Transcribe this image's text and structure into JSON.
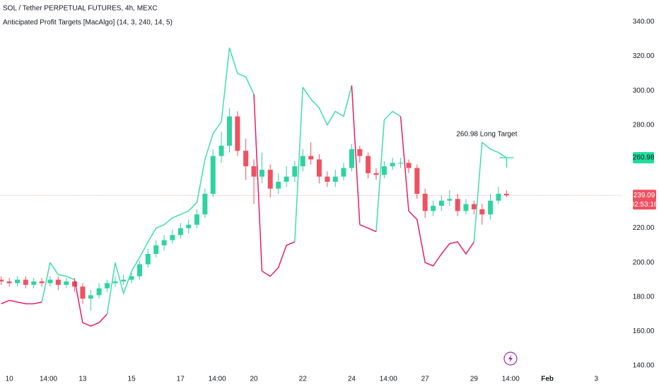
{
  "chart_data": {
    "type": "candlestick",
    "title": "SOL / Tether PERPETUAL FUTURES, 4h, MEXC",
    "subtitle": "Anticipated Profit Targets [MacAlgo] (14, 3, 240, 14, 5)",
    "up_color": "#2ed3a0",
    "down_color": "#ef5160",
    "x": [
      9.67,
      10,
      10.33,
      10.67,
      11,
      11.33,
      11.67,
      12,
      12.33,
      12.67,
      13,
      13.33,
      13.67,
      14,
      14.33,
      14.67,
      15,
      15.33,
      15.67,
      16,
      16.33,
      16.67,
      17,
      17.33,
      17.67,
      18,
      18.33,
      18.67,
      19,
      19.33,
      19.67,
      20,
      20.33,
      20.67,
      21,
      21.33,
      21.67,
      22,
      22.33,
      22.67,
      23,
      23.33,
      23.67,
      24,
      24.33,
      24.67,
      25,
      25.33,
      25.67,
      26,
      26.33,
      26.67,
      27,
      27.33,
      27.67,
      28,
      28.33,
      28.67,
      29,
      29.33,
      29.67,
      30,
      30.33
    ],
    "open": [
      190,
      189,
      188,
      190,
      187,
      189,
      188,
      190,
      187,
      189,
      186,
      179,
      181,
      185,
      188,
      189,
      190,
      192,
      199,
      205,
      210,
      213,
      216,
      220,
      222,
      228,
      240,
      262,
      268,
      285,
      265,
      256,
      250,
      254,
      243,
      247,
      250,
      256,
      262,
      260,
      250,
      247,
      250,
      255,
      266,
      262,
      252,
      251,
      256,
      258,
      258,
      255,
      240,
      230,
      233,
      236,
      237,
      230,
      234,
      231,
      228,
      236,
      240
    ],
    "high": [
      192,
      191,
      192,
      192,
      191,
      191,
      192,
      192,
      191,
      191,
      188,
      184,
      188,
      190,
      192,
      193,
      194,
      201,
      208,
      213,
      216,
      219,
      223,
      225,
      231,
      243,
      266,
      276,
      290,
      288,
      272,
      260,
      264,
      257,
      252,
      256,
      259,
      266,
      270,
      263,
      253,
      254,
      258,
      269,
      268,
      264,
      255,
      259,
      261,
      261,
      260,
      257,
      243,
      236,
      239,
      242,
      240,
      237,
      236,
      234,
      240,
      244,
      242
    ],
    "low": [
      187,
      186,
      186,
      185,
      185,
      186,
      186,
      184,
      185,
      183,
      176,
      172,
      179,
      183,
      186,
      187,
      188,
      190,
      197,
      203,
      207,
      211,
      214,
      217,
      220,
      226,
      238,
      258,
      264,
      262,
      248,
      234,
      246,
      238,
      240,
      244,
      247,
      253,
      257,
      246,
      244,
      244,
      248,
      253,
      258,
      249,
      248,
      249,
      254,
      255,
      252,
      237,
      226,
      227,
      230,
      233,
      227,
      228,
      228,
      222,
      225,
      234,
      238
    ],
    "close": [
      189,
      188,
      190,
      187,
      189,
      188,
      190,
      187,
      189,
      186,
      179,
      181,
      185,
      188,
      189,
      190,
      192,
      199,
      205,
      210,
      213,
      216,
      220,
      222,
      228,
      240,
      262,
      268,
      285,
      265,
      256,
      250,
      254,
      243,
      247,
      250,
      256,
      262,
      260,
      250,
      247,
      250,
      255,
      266,
      262,
      252,
      251,
      256,
      258,
      258,
      255,
      240,
      230,
      233,
      236,
      237,
      230,
      234,
      231,
      228,
      236,
      240,
      239.09
    ],
    "series": [
      {
        "color": "#3ee0a8",
        "values": [
          null,
          null,
          null,
          null,
          null,
          null,
          200,
          193,
          192,
          190,
          null,
          null,
          null,
          null,
          200,
          182,
          195,
          203,
          212,
          220,
          222,
          226,
          228,
          230,
          235,
          260,
          275,
          282,
          325,
          310,
          308,
          298,
          null,
          null,
          null,
          null,
          null,
          302,
          295,
          290,
          280,
          288,
          285,
          303,
          null,
          null,
          null,
          283,
          288,
          285,
          null,
          null,
          null,
          null,
          null,
          null,
          null,
          null,
          null,
          270,
          266,
          264,
          260.98
        ]
      },
      {
        "color": "#e91e63",
        "values": [
          176,
          178,
          177,
          176,
          176,
          177,
          null,
          null,
          null,
          null,
          165,
          163,
          165,
          170,
          null,
          null,
          null,
          null,
          null,
          null,
          null,
          null,
          null,
          null,
          null,
          null,
          null,
          null,
          null,
          null,
          null,
          null,
          195,
          192,
          197,
          210,
          212,
          null,
          null,
          null,
          null,
          null,
          null,
          null,
          222,
          220,
          218,
          null,
          null,
          null,
          230,
          225,
          200,
          198,
          205,
          211,
          212,
          205,
          212,
          null,
          null,
          null,
          null
        ]
      }
    ],
    "annotation": "260.98 Long Target",
    "countdown": "02:53:16",
    "xlim": [
      9.62,
      35.06
    ],
    "ylim": [
      136.7,
      352.76
    ],
    "xticks": [
      10,
      {
        "value": 11.6,
        "label": "14:00"
      },
      13,
      15,
      17,
      {
        "value": 18.5,
        "label": "14:00"
      },
      20,
      22,
      24,
      {
        "value": 25.5,
        "label": "14:00"
      },
      27,
      29,
      {
        "value": 30.5,
        "label": "14:00"
      },
      {
        "value": 32,
        "label": "Feb"
      },
      {
        "value": 34,
        "label": "3"
      }
    ],
    "yticks": [
      {
        "value": 140,
        "label": "140.00"
      },
      {
        "value": 160,
        "label": "160.00"
      },
      {
        "value": 180,
        "label": "180.00"
      },
      {
        "value": 200,
        "label": "200.00"
      },
      {
        "value": 220,
        "label": "220.00"
      },
      {
        "value": 240,
        "label": "240.00"
      },
      {
        "value": 260,
        "label": "260.00"
      },
      {
        "value": 280,
        "label": "280.00"
      },
      {
        "value": 300,
        "label": "300.00"
      },
      {
        "value": 320,
        "label": "320.00"
      },
      {
        "value": 340,
        "label": "340.00"
      }
    ]
  }
}
